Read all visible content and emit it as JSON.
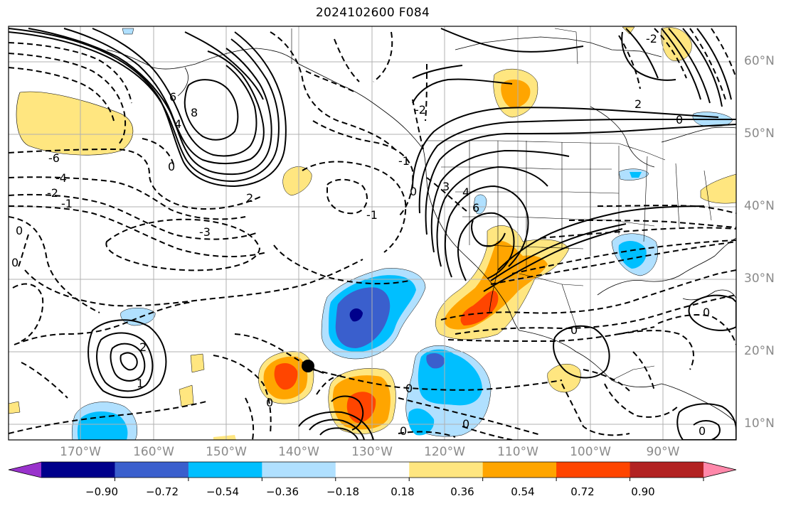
{
  "title": "2024102600 F084",
  "lat_labels": [
    "60°N",
    "50°N",
    "40°N",
    "30°N",
    "20°N",
    "10°N"
  ],
  "lon_labels": [
    "170°W",
    "160°W",
    "150°W",
    "140°W",
    "130°W",
    "120°W",
    "110°W",
    "100°W",
    "90°W"
  ],
  "colorbar": {
    "tick_labels": [
      "−0.90",
      "−0.72",
      "−0.54",
      "−0.36",
      "−0.18",
      "0.18",
      "0.36",
      "0.54",
      "0.72",
      "0.90"
    ],
    "colors": [
      "#9932cc",
      "#00008b",
      "#3a5fcd",
      "#00bfff",
      "#b0e0ff",
      "#ffffff",
      "#ffe680",
      "#ffa500",
      "#ff4500",
      "#b22222",
      "#ff88aa"
    ]
  },
  "contour_labels": {
    "l_neg6": "-6",
    "l_neg4": "-4",
    "l_neg2": "-2",
    "l_neg1a": "-1",
    "l_neg3": "-3",
    "l_neg1b": "-1",
    "l_neg2b": "-2",
    "l_pos6": "6",
    "l_pos8": "8",
    "l_pos4a": "4",
    "l_pos2a": "2",
    "l_pos0a": "0",
    "l_pos6b": "6",
    "l_pos3": "3",
    "l_pos4b": "4",
    "l_pos2b": "2",
    "l_pos0b": "0",
    "l_pos0c": "0",
    "l_pos2c": "2",
    "l_pos1": "1",
    "l_zero1": "0",
    "l_zero2": "0",
    "l_zero3": "0",
    "l_zero4": "0",
    "l_zero5": "0",
    "l_zero6": "0",
    "l_zero7": "0",
    "l_zero8": "0",
    "l_zero9": "0",
    "l_neg1c": "-1",
    "l_neg2c": "-2"
  },
  "map_colors": {
    "line": "#000000",
    "grid": "#b0b0b0",
    "border": "#000000"
  }
}
